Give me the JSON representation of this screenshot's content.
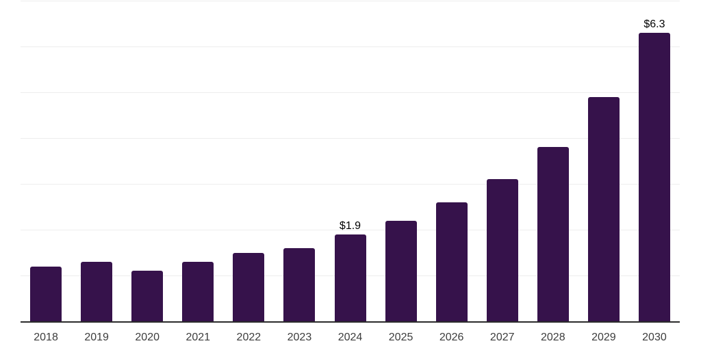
{
  "chart_data": {
    "type": "bar",
    "title": "",
    "xlabel": "",
    "ylabel": "",
    "categories": [
      "2018",
      "2019",
      "2020",
      "2021",
      "2022",
      "2023",
      "2024",
      "2025",
      "2026",
      "2027",
      "2028",
      "2029",
      "2030"
    ],
    "values": [
      1.2,
      1.3,
      1.1,
      1.3,
      1.5,
      1.6,
      1.9,
      2.2,
      2.6,
      3.1,
      3.8,
      4.9,
      6.3
    ],
    "data_labels": {
      "2024": "$1.9",
      "2030": "$6.3"
    },
    "ylim": [
      0,
      7.05
    ],
    "gridline_values": [
      1,
      2,
      3,
      4,
      5,
      6,
      7
    ],
    "grid": true,
    "legend": "none",
    "colors": {
      "bar": "#36124B",
      "gridline": "#EDEDED",
      "axis_line": "#2B2B2B",
      "data_label": "#000000",
      "tick_label": "#3C3C3C",
      "background": "#FFFFFF"
    }
  }
}
